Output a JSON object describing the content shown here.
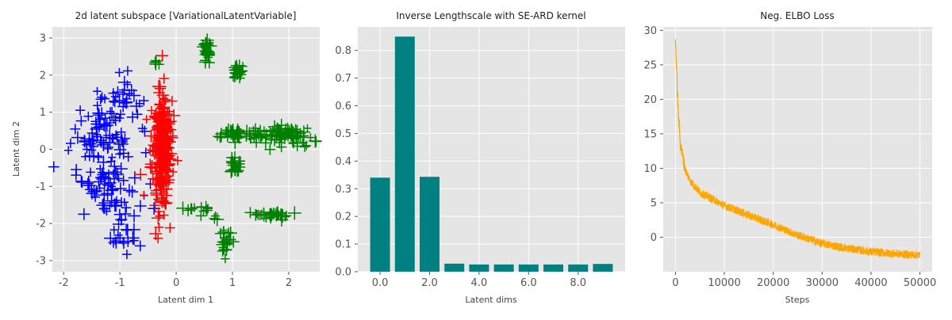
{
  "colors": {
    "panel_bg": "#e5e5e5",
    "grid": "#ffffff",
    "tick_text": "#555555",
    "blue": "#0000ff",
    "red": "#ff0000",
    "green": "#008000",
    "teal": "#008080",
    "orange": "#ffa500"
  },
  "chart_data": [
    {
      "type": "scatter",
      "title": "2d latent subspace [VariationalLatentVariable]",
      "xlabel": "Latent dim 1",
      "ylabel": "Latent dim 2",
      "xlim": [
        -2.2,
        2.55
      ],
      "ylim": [
        -3.3,
        3.3
      ],
      "xticks": [
        -2,
        -1,
        0,
        1,
        2
      ],
      "yticks": [
        -3,
        -2,
        -1,
        0,
        1,
        2,
        3
      ],
      "grid": true,
      "marker": "plus",
      "series": [
        {
          "color": "blue",
          "clusters": [
            {
              "x": -1.3,
              "y": 0.45,
              "sx": 0.28,
              "sy": 0.55,
              "n": 90
            },
            {
              "x": -1.2,
              "y": -1.05,
              "sx": 0.28,
              "sy": 0.5,
              "n": 70
            },
            {
              "x": -0.85,
              "y": 1.55,
              "sx": 0.2,
              "sy": 0.25,
              "n": 18
            },
            {
              "x": -0.9,
              "y": -2.35,
              "sx": 0.15,
              "sy": 0.2,
              "n": 20
            }
          ]
        },
        {
          "color": "red",
          "clusters": [
            {
              "x": -0.27,
              "y": 0.0,
              "sx": 0.09,
              "sy": 0.8,
              "n": 260
            }
          ]
        },
        {
          "color": "green",
          "clusters": [
            {
              "x": 0.53,
              "y": 2.65,
              "sx": 0.05,
              "sy": 0.15,
              "n": 30
            },
            {
              "x": 1.1,
              "y": 2.05,
              "sx": 0.05,
              "sy": 0.12,
              "n": 22
            },
            {
              "x": 1.05,
              "y": 0.42,
              "sx": 0.2,
              "sy": 0.08,
              "n": 45
            },
            {
              "x": 1.95,
              "y": 0.4,
              "sx": 0.25,
              "sy": 0.12,
              "n": 80
            },
            {
              "x": 1.05,
              "y": -0.42,
              "sx": 0.05,
              "sy": 0.12,
              "n": 22
            },
            {
              "x": 1.72,
              "y": -1.78,
              "sx": 0.18,
              "sy": 0.06,
              "n": 35
            },
            {
              "x": 0.88,
              "y": -2.5,
              "sx": 0.06,
              "sy": 0.14,
              "n": 25
            },
            {
              "x": 0.55,
              "y": -1.6,
              "sx": 0.1,
              "sy": 0.08,
              "n": 6
            },
            {
              "x": -0.35,
              "y": 2.35,
              "sx": 0.05,
              "sy": 0.05,
              "n": 5
            },
            {
              "x": 0.75,
              "y": -1.85,
              "sx": 0.05,
              "sy": 0.05,
              "n": 3
            },
            {
              "x": 0.25,
              "y": -1.6,
              "sx": 0.08,
              "sy": 0.1,
              "n": 5
            },
            {
              "x": 1.4,
              "y": 0.3,
              "sx": 0.06,
              "sy": 0.06,
              "n": 8
            }
          ]
        }
      ]
    },
    {
      "type": "bar",
      "title": "Inverse Lengthscale with SE-ARD kernel",
      "xlabel": "Latent dims",
      "ylabel": "",
      "categories": [
        0,
        1,
        2,
        3,
        4,
        5,
        6,
        7,
        8,
        9
      ],
      "values": [
        0.34,
        0.85,
        0.343,
        0.029,
        0.026,
        0.026,
        0.026,
        0.026,
        0.026,
        0.028
      ],
      "color": "teal",
      "xlim": [
        -0.9,
        9.9
      ],
      "ylim": [
        0,
        0.885
      ],
      "xticks": [
        0,
        2,
        4,
        6,
        8
      ],
      "yticks": [
        0.0,
        0.1,
        0.2,
        0.3,
        0.4,
        0.5,
        0.6,
        0.7,
        0.8
      ],
      "grid": true
    },
    {
      "type": "line",
      "title": "Neg. ELBO Loss",
      "xlabel": "Steps",
      "ylabel": "",
      "color": "orange",
      "x_range": [
        0,
        50000
      ],
      "curve": {
        "start": 28.7,
        "points": [
          [
            0,
            28.7
          ],
          [
            500,
            19
          ],
          [
            1000,
            13.5
          ],
          [
            2000,
            9.8
          ],
          [
            3000,
            8.2
          ],
          [
            5000,
            6.5
          ],
          [
            10000,
            4.6
          ],
          [
            15000,
            3.2
          ],
          [
            20000,
            1.8
          ],
          [
            25000,
            0.3
          ],
          [
            30000,
            -0.9
          ],
          [
            35000,
            -1.6
          ],
          [
            40000,
            -2.1
          ],
          [
            45000,
            -2.4
          ],
          [
            50000,
            -2.6
          ]
        ],
        "noise_band": 1.2
      },
      "xlim": [
        -2500,
        52500
      ],
      "ylim": [
        -5,
        30.5
      ],
      "xticks": [
        0,
        10000,
        20000,
        30000,
        40000,
        50000
      ],
      "yticks": [
        0,
        5,
        10,
        15,
        20,
        25,
        30
      ],
      "grid": true
    }
  ]
}
